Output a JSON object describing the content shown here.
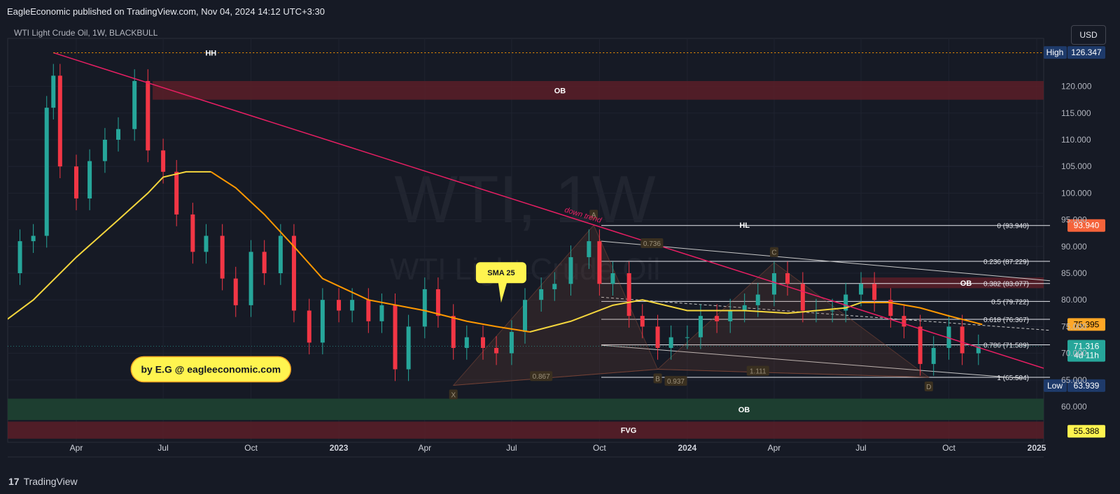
{
  "header": {
    "publish_line": "EagleEconomic published on TradingView.com, Nov 04, 2024 14:12 UTC+3:30",
    "symbol_line": "WTI Light Crude Oil, 1W, BLACKBULL",
    "currency_button": "USD"
  },
  "footer": {
    "brand_logo": "17",
    "brand_name": "TradingView"
  },
  "watermark": {
    "main": "WTI, 1W",
    "sub": "WTI Light Crude Oil"
  },
  "colors": {
    "bull": "#26a69a",
    "bear": "#f23645",
    "sma25": "#f5d63d",
    "sma_slow": "#ff9800",
    "trendline": "#e91e63",
    "ob_red": "#5a1f28",
    "ob_green": "#1d4030",
    "background": "#161a25"
  },
  "chart_data": {
    "type": "candlestick",
    "title": "WTI Light Crude Oil, 1W, BLACKBULL",
    "ylim": [
      52,
      127
    ],
    "y_ticks": [
      60,
      65,
      70,
      75,
      80,
      85,
      90,
      95,
      100,
      105,
      110,
      115,
      120
    ],
    "y_tick_labels": [
      "60.000",
      "65.000",
      "70.000",
      "75.000",
      "80.000",
      "85.000",
      "90.000",
      "95.000",
      "100.000",
      "105.000",
      "110.000",
      "115.000",
      "120.000"
    ],
    "x_ticks": [
      {
        "label": "Apr",
        "x": "2022-04-01",
        "bold": false
      },
      {
        "label": "Jul",
        "x": "2022-07-01",
        "bold": false
      },
      {
        "label": "Oct",
        "x": "2022-10-01",
        "bold": false
      },
      {
        "label": "2023",
        "x": "2023-01-01",
        "bold": true
      },
      {
        "label": "Apr",
        "x": "2023-04-01",
        "bold": false
      },
      {
        "label": "Jul",
        "x": "2023-07-01",
        "bold": false
      },
      {
        "label": "Oct",
        "x": "2023-10-01",
        "bold": false
      },
      {
        "label": "2024",
        "x": "2024-01-01",
        "bold": true
      },
      {
        "label": "Apr",
        "x": "2024-04-01",
        "bold": false
      },
      {
        "label": "Jul",
        "x": "2024-07-01",
        "bold": false
      },
      {
        "label": "Oct",
        "x": "2024-10-01",
        "bold": false
      },
      {
        "label": "2025",
        "x": "2025-01-01",
        "bold": true
      }
    ],
    "close_series": [
      {
        "x": "2022-01-01",
        "c": 80
      },
      {
        "x": "2022-01-15",
        "c": 85
      },
      {
        "x": "2022-02-01",
        "c": 91
      },
      {
        "x": "2022-02-15",
        "c": 92
      },
      {
        "x": "2022-03-01",
        "c": 116
      },
      {
        "x": "2022-03-08",
        "c": 122
      },
      {
        "x": "2022-03-15",
        "c": 105
      },
      {
        "x": "2022-04-01",
        "c": 99
      },
      {
        "x": "2022-04-15",
        "c": 106
      },
      {
        "x": "2022-05-01",
        "c": 110
      },
      {
        "x": "2022-05-15",
        "c": 112
      },
      {
        "x": "2022-06-01",
        "c": 121
      },
      {
        "x": "2022-06-15",
        "c": 108
      },
      {
        "x": "2022-07-01",
        "c": 104
      },
      {
        "x": "2022-07-15",
        "c": 96
      },
      {
        "x": "2022-08-01",
        "c": 89
      },
      {
        "x": "2022-08-15",
        "c": 92
      },
      {
        "x": "2022-09-01",
        "c": 84
      },
      {
        "x": "2022-09-15",
        "c": 79
      },
      {
        "x": "2022-10-01",
        "c": 89
      },
      {
        "x": "2022-10-15",
        "c": 85
      },
      {
        "x": "2022-11-01",
        "c": 92
      },
      {
        "x": "2022-11-15",
        "c": 78
      },
      {
        "x": "2022-12-01",
        "c": 72
      },
      {
        "x": "2022-12-15",
        "c": 80
      },
      {
        "x": "2023-01-01",
        "c": 78
      },
      {
        "x": "2023-01-15",
        "c": 80
      },
      {
        "x": "2023-02-01",
        "c": 76
      },
      {
        "x": "2023-02-15",
        "c": 79
      },
      {
        "x": "2023-03-01",
        "c": 67
      },
      {
        "x": "2023-03-15",
        "c": 75
      },
      {
        "x": "2023-04-01",
        "c": 82
      },
      {
        "x": "2023-04-15",
        "c": 77
      },
      {
        "x": "2023-05-01",
        "c": 71
      },
      {
        "x": "2023-05-15",
        "c": 73
      },
      {
        "x": "2023-06-01",
        "c": 71
      },
      {
        "x": "2023-06-15",
        "c": 70
      },
      {
        "x": "2023-07-01",
        "c": 74
      },
      {
        "x": "2023-07-15",
        "c": 80
      },
      {
        "x": "2023-08-01",
        "c": 82
      },
      {
        "x": "2023-08-15",
        "c": 83
      },
      {
        "x": "2023-09-01",
        "c": 88
      },
      {
        "x": "2023-09-20",
        "c": 91
      },
      {
        "x": "2023-10-01",
        "c": 83
      },
      {
        "x": "2023-10-15",
        "c": 85
      },
      {
        "x": "2023-11-01",
        "c": 77
      },
      {
        "x": "2023-11-15",
        "c": 75
      },
      {
        "x": "2023-12-01",
        "c": 71
      },
      {
        "x": "2023-12-15",
        "c": 73
      },
      {
        "x": "2024-01-01",
        "c": 73
      },
      {
        "x": "2024-01-15",
        "c": 77
      },
      {
        "x": "2024-02-01",
        "c": 76
      },
      {
        "x": "2024-02-15",
        "c": 78
      },
      {
        "x": "2024-03-01",
        "c": 79
      },
      {
        "x": "2024-03-15",
        "c": 81
      },
      {
        "x": "2024-04-01",
        "c": 85
      },
      {
        "x": "2024-04-15",
        "c": 83
      },
      {
        "x": "2024-05-01",
        "c": 78
      },
      {
        "x": "2024-05-15",
        "c": 78
      },
      {
        "x": "2024-06-01",
        "c": 78
      },
      {
        "x": "2024-06-15",
        "c": 81
      },
      {
        "x": "2024-07-01",
        "c": 83
      },
      {
        "x": "2024-07-15",
        "c": 80
      },
      {
        "x": "2024-08-01",
        "c": 77
      },
      {
        "x": "2024-08-15",
        "c": 75
      },
      {
        "x": "2024-09-01",
        "c": 68
      },
      {
        "x": "2024-09-15",
        "c": 71
      },
      {
        "x": "2024-10-01",
        "c": 75
      },
      {
        "x": "2024-10-15",
        "c": 70
      },
      {
        "x": "2024-11-01",
        "c": 71.3
      }
    ],
    "sma25": [
      {
        "x": "2022-01-01",
        "y": 74
      },
      {
        "x": "2022-02-15",
        "y": 80
      },
      {
        "x": "2022-04-01",
        "y": 88
      },
      {
        "x": "2022-05-15",
        "y": 95
      },
      {
        "x": "2022-06-15",
        "y": 100
      },
      {
        "x": "2022-07-01",
        "y": 103
      },
      {
        "x": "2022-07-25",
        "y": 104
      },
      {
        "x": "2022-08-20",
        "y": 104
      }
    ],
    "sma_slow": [
      {
        "x": "2022-08-20",
        "y": 104
      },
      {
        "x": "2022-09-15",
        "y": 101
      },
      {
        "x": "2022-10-15",
        "y": 96
      },
      {
        "x": "2022-11-15",
        "y": 90
      },
      {
        "x": "2022-12-15",
        "y": 84
      },
      {
        "x": "2023-02-01",
        "y": 80
      },
      {
        "x": "2023-04-01",
        "y": 78
      },
      {
        "x": "2023-05-15",
        "y": 76
      },
      {
        "x": "2023-06-15",
        "y": 75
      },
      {
        "x": "2023-07-20",
        "y": 74
      }
    ],
    "sma25_b": [
      {
        "x": "2023-07-20",
        "y": 74
      },
      {
        "x": "2023-09-01",
        "y": 76
      },
      {
        "x": "2023-10-15",
        "y": 79
      },
      {
        "x": "2023-11-15",
        "y": 80
      },
      {
        "x": "2024-01-01",
        "y": 78
      },
      {
        "x": "2024-03-01",
        "y": 78
      },
      {
        "x": "2024-04-15",
        "y": 77.5
      },
      {
        "x": "2024-06-15",
        "y": 78.5
      },
      {
        "x": "2024-07-01",
        "y": 79.5
      }
    ],
    "sma_slow_b": [
      {
        "x": "2024-07-01",
        "y": 79.5
      },
      {
        "x": "2024-08-01",
        "y": 79.5
      },
      {
        "x": "2024-09-01",
        "y": 78.5
      },
      {
        "x": "2024-10-01",
        "y": 77
      },
      {
        "x": "2024-11-05",
        "y": 75.4
      }
    ],
    "levels": [
      {
        "label": "0 (93.940)",
        "price": 93.94
      },
      {
        "label": "0.236 (87.229)",
        "price": 87.229
      },
      {
        "label": "0.382 (83.077)",
        "price": 83.077
      },
      {
        "label": "0.5 (79.722)",
        "price": 79.722
      },
      {
        "label": "0.618 (76.367)",
        "price": 76.367
      },
      {
        "label": "0.786 (71.589)",
        "price": 71.589
      },
      {
        "label": "1 (65.504)",
        "price": 65.504
      }
    ],
    "zones": [
      {
        "label": "OB",
        "kind": "red",
        "from": "2022-06-20",
        "to": "2025-01-15",
        "top": 121,
        "bottom": 117.5
      },
      {
        "label": "OB",
        "kind": "red",
        "from": "2024-07-01",
        "to": "2025-01-15",
        "top": 84.2,
        "bottom": 82.2
      },
      {
        "label": "OB",
        "kind": "green",
        "from": "2022-01-01",
        "to": "2025-01-15",
        "top": 61.5,
        "bottom": 57.5
      },
      {
        "label": "FVG",
        "kind": "red",
        "from": "2022-01-01",
        "to": "2025-01-15",
        "top": 57.2,
        "bottom": 54
      }
    ],
    "swing_labels": [
      {
        "label": "HH",
        "x": "2022-08-20",
        "y": 126.3
      },
      {
        "label": "HL",
        "x": "2024-03-01",
        "y": 94
      }
    ],
    "harmonic_points": [
      {
        "label": "X",
        "x": "2023-05-01",
        "y": 64
      },
      {
        "label": "A",
        "x": "2023-09-25",
        "y": 94
      },
      {
        "label": "B",
        "x": "2023-12-01",
        "y": 67
      },
      {
        "label": "C",
        "x": "2024-04-01",
        "y": 87
      },
      {
        "label": "D",
        "x": "2024-09-10",
        "y": 65.5
      }
    ],
    "ratio_labels": [
      {
        "label": "0.736",
        "x": "2023-11-25",
        "y": 90.5
      },
      {
        "label": "0.867",
        "x": "2023-08-01",
        "y": 65.6
      },
      {
        "label": "0.937",
        "x": "2023-12-20",
        "y": 64.7
      },
      {
        "label": "1.111",
        "x": "2024-03-15",
        "y": 66.6
      }
    ],
    "annotations": [
      {
        "label": "down trend",
        "x": "2023-08-25",
        "y": 96.5
      },
      {
        "label": "SMA 25",
        "x": "2023-06-20",
        "y": 85.1
      },
      {
        "label": "by E.G @ eagleeconomic.com",
        "x": "2022-08-20",
        "y": 67
      }
    ],
    "price_labels": [
      {
        "text": "126.347",
        "price": 126.35,
        "bg": "#1e3a6a",
        "fg": "#ffffff"
      },
      {
        "text": "93.940",
        "price": 93.94,
        "bg": "#f5633a",
        "fg": "#ffffff"
      },
      {
        "text": "75.395",
        "price": 75.395,
        "bg": "#ffa726",
        "fg": "#000000"
      },
      {
        "text": "71.316",
        "price": 71.316,
        "bg": "#26a69a",
        "fg": "#ffffff"
      },
      {
        "text": "4d 11h",
        "price": 69.6,
        "bg": "#26a69a",
        "fg": "#ffffff"
      },
      {
        "text": "63.939",
        "price": 63.939,
        "bg": "#1e3a6a",
        "fg": "#ffffff"
      },
      {
        "text": "55.388",
        "price": 55.388,
        "bg": "#fff44f",
        "fg": "#000000"
      }
    ],
    "side_tags": [
      {
        "text": "High",
        "price": 126.35
      },
      {
        "text": "Low",
        "price": 63.939
      }
    ],
    "grid": true,
    "legend": "none"
  }
}
